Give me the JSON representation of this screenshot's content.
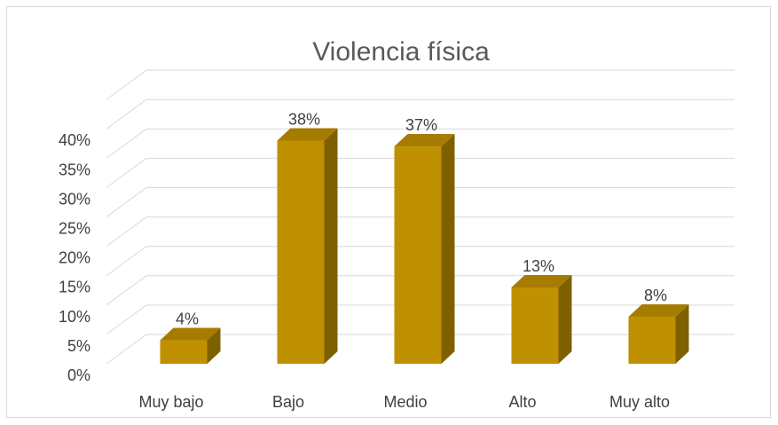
{
  "chart_data": {
    "type": "bar",
    "title": "Violencia física",
    "categories": [
      "Muy bajo",
      "Bajo",
      "Medio",
      "Alto",
      "Muy alto"
    ],
    "values": [
      4,
      38,
      37,
      13,
      8
    ],
    "data_labels": [
      "4%",
      "38%",
      "37%",
      "13%",
      "8%"
    ],
    "y_ticks": [
      "0%",
      "5%",
      "10%",
      "15%",
      "20%",
      "25%",
      "30%",
      "35%",
      "40%"
    ],
    "ylim": [
      0,
      40
    ],
    "grid": true,
    "legend": "none",
    "style": "3d-column",
    "colors": {
      "front": "#bf9000",
      "side": "#7f6000",
      "top": "#a67c00"
    }
  }
}
